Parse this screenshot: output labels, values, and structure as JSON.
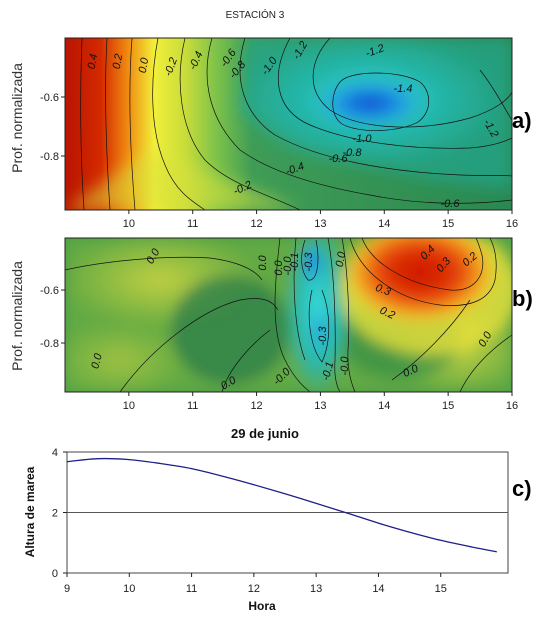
{
  "title": "ESTACIÓN 3",
  "panel_labels": [
    "a)",
    "b)",
    "c)"
  ],
  "colors": {
    "red": "#cc1a00",
    "yellow": "#f2ef3a",
    "green": "#2e8a52",
    "cyan": "#35d6d6",
    "blue": "#0a4fe0",
    "tide_line": "#1f1f8a"
  },
  "chart_data": [
    {
      "type": "heatmap",
      "panel": "a)",
      "title": "ESTACIÓN 3",
      "ylabel": "Prof. normalizada",
      "xlim": [
        9,
        16
      ],
      "xticks": [
        "10",
        "11",
        "12",
        "13",
        "14",
        "15",
        "16"
      ],
      "yticks": [
        "-0.6",
        "-0.8"
      ],
      "contour_labels": [
        "0.4",
        "0.2",
        "0.0",
        "-0.2",
        "-0.4",
        "-0.6",
        "-0.8",
        "-1.0",
        "-1.2",
        "-1.4",
        "-1.2",
        "-1.2",
        "-1.0",
        "-0.8",
        "-0.6",
        "-0.4",
        "-0.2",
        "-0.6"
      ],
      "features": [
        {
          "label": "positive maximum",
          "x": 9.3,
          "value": 0.45
        },
        {
          "label": "negative minimum",
          "x": 13.85,
          "y": -0.63,
          "value": -1.45
        }
      ]
    },
    {
      "type": "heatmap",
      "panel": "b)",
      "ylabel": "Prof. normalizada",
      "xlim": [
        9,
        16
      ],
      "xticks": [
        "10",
        "11",
        "12",
        "13",
        "14",
        "15",
        "16"
      ],
      "yticks": [
        "-0.6",
        "-0.8"
      ],
      "contour_labels": [
        "0.0",
        "0.0",
        "0.0",
        "0.0",
        "-0.0",
        "-0.1",
        "-0.3",
        "-0.3",
        "-0.1",
        "-0.0",
        "-0.0",
        "0.0",
        "0.4",
        "0.3",
        "0.2",
        "0.3",
        "0.2",
        "0.0",
        "0.0",
        "0.0"
      ],
      "features": [
        {
          "label": "positive maximum",
          "x": 14.4,
          "y": -0.58,
          "value": 0.45
        },
        {
          "label": "negative minimum",
          "x": 12.95,
          "y": -0.55,
          "value": -0.35
        }
      ]
    },
    {
      "type": "line",
      "panel": "c)",
      "title": "29 de junio",
      "xlabel": "Hora",
      "ylabel": "Altura de marea",
      "xlim": [
        9,
        16
      ],
      "ylim": [
        0,
        4
      ],
      "xticks": [
        "9",
        "10",
        "11",
        "12",
        "13",
        "14",
        "15"
      ],
      "yticks": [
        "0",
        "2",
        "4"
      ],
      "reference_line": 2,
      "series": [
        {
          "x": [
            9.0,
            9.5,
            10.0,
            10.5,
            11.0,
            11.5,
            12.0,
            12.5,
            13.0,
            13.5,
            14.0,
            14.5,
            15.0,
            15.5,
            15.9
          ],
          "values": [
            3.68,
            3.78,
            3.75,
            3.62,
            3.45,
            3.2,
            2.92,
            2.62,
            2.3,
            1.98,
            1.65,
            1.35,
            1.08,
            0.86,
            0.7
          ]
        }
      ]
    }
  ]
}
